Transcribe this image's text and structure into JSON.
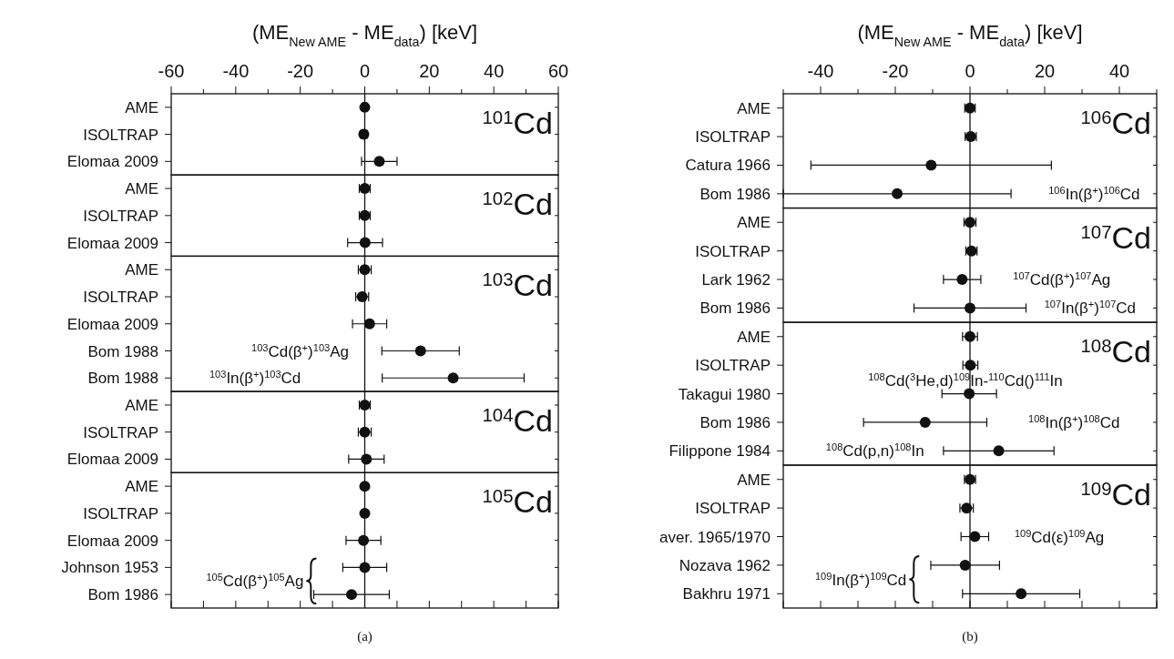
{
  "chart_data": [
    {
      "type": "scatter",
      "orientation": "horizontal",
      "marker": "circle",
      "xlabel": "(ME$_{New AME}$ - ME$_{data}$) [keV]",
      "xlim": [
        -60,
        60
      ],
      "xticks": [
        -60,
        {
          "value": -50,
          "label": null
        },
        -40,
        {
          "value": -30,
          "label": null
        },
        -20,
        {
          "value": -10,
          "label": null
        },
        0,
        {
          "value": 10,
          "label": null
        },
        20,
        {
          "value": 30,
          "label": null
        },
        40,
        {
          "value": 50,
          "label": null
        },
        60
      ],
      "ref_lines": [
        {
          "axis": "x",
          "value": 0
        }
      ],
      "categories": [
        "AME",
        "ISOLTRAP",
        "Elomaa 2009"
      ],
      "values": [
        0,
        -0.3,
        4.5
      ],
      "errors": [
        0.8,
        1,
        5.5
      ],
      "annotations": [
        "$^{101}$Cd"
      ]
    },
    {
      "type": "scatter",
      "orientation": "horizontal",
      "marker": "circle",
      "tick_labels": "y",
      "xlim": [
        -60,
        60
      ],
      "ref_lines": [
        {
          "axis": "x",
          "value": 0
        }
      ],
      "categories": [
        "AME",
        "ISOLTRAP",
        "Elomaa 2009"
      ],
      "values": [
        0,
        0,
        0.1
      ],
      "errors": [
        1.7,
        1.7,
        5.4
      ],
      "annotations": [
        "$^{102}$Cd"
      ]
    },
    {
      "type": "scatter",
      "orientation": "horizontal",
      "marker": "circle",
      "tick_labels": "y",
      "xlim": [
        -60,
        60
      ],
      "ref_lines": [
        {
          "axis": "x",
          "value": 0
        }
      ],
      "categories": [
        "AME",
        "ISOLTRAP",
        "Elomaa 2009",
        "Bom 1988",
        "Bom 1988"
      ],
      "values": [
        0,
        -0.8,
        1.5,
        17.3,
        27.4
      ],
      "errors": [
        2,
        2,
        5.3,
        12,
        22
      ],
      "annotations": [
        "$^{103}$Cd",
        "$^{103}$Cd(β$^{+}$)$^{103}$Ag",
        "$^{103}$In(β$^{+}$)$^{103}$Cd"
      ]
    },
    {
      "type": "scatter",
      "orientation": "horizontal",
      "marker": "circle",
      "tick_labels": "y",
      "xlim": [
        -60,
        60
      ],
      "ref_lines": [
        {
          "axis": "x",
          "value": 0
        }
      ],
      "categories": [
        "AME",
        "ISOLTRAP",
        "Elomaa 2009"
      ],
      "values": [
        0,
        0,
        0.5
      ],
      "errors": [
        1.7,
        2,
        5.5
      ],
      "annotations": [
        "$^{104}$Cd"
      ]
    },
    {
      "type": "scatter",
      "orientation": "horizontal",
      "marker": "circle",
      "tick_labels": "y",
      "xlim": [
        -60,
        60
      ],
      "xticks": [
        {
          "value": -60,
          "label": null
        },
        {
          "value": -50,
          "label": null
        },
        {
          "value": -40,
          "label": null
        },
        {
          "value": -30,
          "label": null
        },
        {
          "value": -20,
          "label": null
        },
        {
          "value": -10,
          "label": null
        },
        {
          "value": 0,
          "label": null
        },
        {
          "value": 10,
          "label": null
        },
        {
          "value": 20,
          "label": null
        },
        {
          "value": 30,
          "label": null
        },
        {
          "value": 40,
          "label": null
        },
        {
          "value": 50,
          "label": null
        },
        {
          "value": 60,
          "label": null
        }
      ],
      "ref_lines": [
        {
          "axis": "x",
          "value": 0
        }
      ],
      "categories": [
        "AME",
        "ISOLTRAP",
        "Elomaa 2009",
        "Johnson 1953",
        "Bom 1986"
      ],
      "values": [
        0,
        0,
        -0.4,
        0,
        -4.1
      ],
      "errors": [
        0.5,
        0.5,
        5.4,
        6.8,
        11.7
      ],
      "annotations": [
        "$^{105}$Cd",
        "$^{105}$Cd(β$^{+}$)$^{105}$Ag",
        "(a)"
      ]
    },
    {
      "type": "scatter",
      "orientation": "horizontal",
      "marker": "circle",
      "xlabel": "(ME$_{New AME}$ - ME$_{data}$) [keV]",
      "xlim": [
        -50,
        50
      ],
      "xticks": [
        {
          "value": -50,
          "label": null
        },
        -40,
        {
          "value": -30,
          "label": null
        },
        -20,
        {
          "value": -10,
          "label": null
        },
        0,
        {
          "value": 10,
          "label": null
        },
        20,
        {
          "value": 30,
          "label": null
        },
        40,
        {
          "value": 50,
          "label": null
        }
      ],
      "ref_lines": [
        {
          "axis": "x",
          "value": 0
        }
      ],
      "categories": [
        "AME",
        "ISOLTRAP",
        "Catura 1966",
        "Bom 1986"
      ],
      "values": [
        0,
        0.2,
        -10.4,
        -19.5
      ],
      "errors": [
        1.4,
        1.5,
        32.2,
        30.5
      ],
      "annotations": [
        "$^{106}$Cd",
        "$^{106}$In(β$^{+}$)$^{106}$Cd"
      ]
    },
    {
      "type": "scatter",
      "orientation": "horizontal",
      "marker": "circle",
      "tick_labels": "y",
      "xlim": [
        -50,
        50
      ],
      "ref_lines": [
        {
          "axis": "x",
          "value": 0
        }
      ],
      "categories": [
        "AME",
        "ISOLTRAP",
        "Lark 1962",
        "Bom 1986"
      ],
      "values": [
        0,
        0.4,
        -2.1,
        0
      ],
      "errors": [
        1.6,
        1.5,
        5,
        15
      ],
      "annotations": [
        "$^{107}$Cd",
        "$^{107}$Cd(β$^{+}$)$^{107}$Ag",
        "$^{107}$In(β$^{+}$)$^{107}$Cd"
      ]
    },
    {
      "type": "scatter",
      "orientation": "horizontal",
      "marker": "circle",
      "tick_labels": "y",
      "xlim": [
        -50,
        50
      ],
      "ref_lines": [
        {
          "axis": "x",
          "value": 0
        }
      ],
      "categories": [
        "AME",
        "ISOLTRAP",
        "Takagui 1980",
        "Bom 1986",
        "Filippone 1984"
      ],
      "values": [
        0,
        0.1,
        -0.2,
        -12,
        7.7
      ],
      "errors": [
        2,
        2,
        7.3,
        16.5,
        14.8
      ],
      "annotations": [
        "$^{108}$Cd",
        "$^{108}$Cd($^{3}$He,d)$^{109}$In-$^{110}$Cd()$^{111}$In",
        "$^{108}$In(β$^{+}$)$^{108}$Cd",
        "$^{108}$Cd(p,n)$^{108}$In"
      ]
    },
    {
      "type": "scatter",
      "orientation": "horizontal",
      "marker": "circle",
      "tick_labels": "y",
      "xlim": [
        -50,
        50
      ],
      "xticks": [
        {
          "value": -50,
          "label": null
        },
        {
          "value": -40,
          "label": null
        },
        {
          "value": -30,
          "label": null
        },
        {
          "value": -20,
          "label": null
        },
        {
          "value": -10,
          "label": null
        },
        {
          "value": 0,
          "label": null
        },
        {
          "value": 10,
          "label": null
        },
        {
          "value": 20,
          "label": null
        },
        {
          "value": 30,
          "label": null
        },
        {
          "value": 40,
          "label": null
        },
        {
          "value": 50,
          "label": null
        }
      ],
      "ref_lines": [
        {
          "axis": "x",
          "value": 0
        }
      ],
      "categories": [
        "AME",
        "ISOLTRAP",
        "aver. 1965/1970",
        "Nozava 1962",
        "Bakhru 1971"
      ],
      "values": [
        0,
        -0.9,
        1.3,
        -1.3,
        13.7
      ],
      "errors": [
        1.5,
        1.8,
        3.7,
        9.2,
        15.7
      ],
      "annotations": [
        "$^{109}$Cd",
        "$^{109}$Cd(ε)$^{109}$Ag",
        "$^{109}$In(β$^{+}$)$^{109}$Cd",
        "(b)"
      ]
    }
  ]
}
